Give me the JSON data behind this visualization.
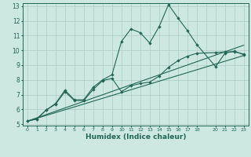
{
  "xlabel": "Humidex (Indice chaleur)",
  "bg_color": "#cce8e0",
  "grid_color": "#aaccc4",
  "line_color": "#226655",
  "xlim": [
    -0.5,
    23.5
  ],
  "ylim": [
    4.9,
    13.2
  ],
  "xtick_vals": [
    0,
    1,
    2,
    3,
    4,
    5,
    6,
    7,
    8,
    9,
    10,
    11,
    12,
    13,
    14,
    15,
    16,
    17,
    18,
    20,
    21,
    22,
    23
  ],
  "ytick_vals": [
    5,
    6,
    7,
    8,
    9,
    10,
    11,
    12,
    13
  ],
  "line1_x": [
    0,
    1,
    2,
    3,
    4,
    5,
    6,
    7,
    8,
    9,
    10,
    11,
    12,
    13,
    14,
    15,
    16,
    17,
    18,
    20,
    21,
    22,
    23
  ],
  "line1_y": [
    5.2,
    5.35,
    5.95,
    6.4,
    7.3,
    6.65,
    6.65,
    7.5,
    8.0,
    8.35,
    10.6,
    11.45,
    11.2,
    10.5,
    11.6,
    13.1,
    12.2,
    11.35,
    10.4,
    8.9,
    9.8,
    9.95,
    9.7
  ],
  "line2_x": [
    0,
    1,
    2,
    3,
    4,
    5,
    6,
    7,
    8,
    9,
    10,
    11,
    12,
    13,
    14,
    15,
    16,
    17,
    18,
    20,
    21,
    22,
    23
  ],
  "line2_y": [
    5.2,
    5.35,
    5.95,
    6.35,
    7.2,
    6.6,
    6.6,
    7.35,
    7.95,
    8.1,
    7.2,
    7.6,
    7.75,
    7.85,
    8.25,
    8.85,
    9.3,
    9.6,
    9.8,
    9.85,
    9.9,
    9.9,
    9.75
  ],
  "line3_x": [
    0,
    23
  ],
  "line3_y": [
    5.2,
    9.65
  ],
  "line4_x": [
    0,
    23
  ],
  "line4_y": [
    5.2,
    10.35
  ],
  "lw": 0.8,
  "ms": 2.2
}
